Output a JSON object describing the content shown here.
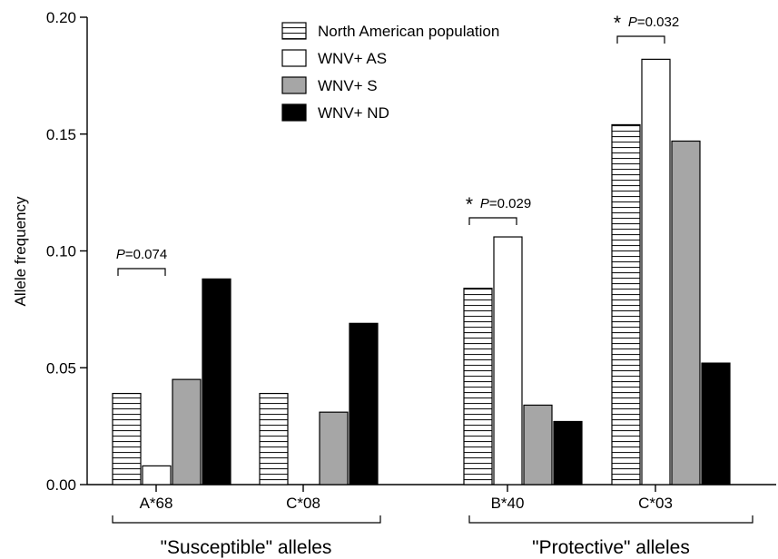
{
  "chart_data": {
    "type": "bar",
    "title": "",
    "xlabel": "",
    "ylabel": "Allele frequency",
    "ylim": [
      0,
      0.2
    ],
    "yticks": [
      {
        "value": 0,
        "label": "0.00"
      },
      {
        "value": 0.05,
        "label": "0.05"
      },
      {
        "value": 0.1,
        "label": "0.10"
      },
      {
        "value": 0.15,
        "label": "0.15"
      },
      {
        "value": 0.2,
        "label": "0.20"
      }
    ],
    "categories": [
      "A*68",
      "C*08",
      "B*40",
      "C*03"
    ],
    "series": [
      {
        "name": "North American population",
        "values": [
          0.039,
          0.039,
          0.084,
          0.154
        ],
        "fill": "striped"
      },
      {
        "name": "WNV+ AS",
        "values": [
          0.008,
          0,
          0.106,
          0.182
        ],
        "fill": "#ffffff"
      },
      {
        "name": "WNV+ S",
        "values": [
          0.045,
          0.031,
          0.034,
          0.147
        ],
        "fill": "#a6a6a6"
      },
      {
        "name": "WNV+ ND",
        "values": [
          0.088,
          0.069,
          0.027,
          0.052
        ],
        "fill": "#000000"
      }
    ],
    "legend": {
      "placement": "top-center"
    },
    "annotations": [
      {
        "category": "A*68",
        "star": "",
        "p_italic": "P",
        "p_value": "=0.074"
      },
      {
        "category": "B*40",
        "star": "*",
        "p_italic": "P",
        "p_value": "=0.029"
      },
      {
        "category": "C*03",
        "star": "*",
        "p_italic": "P",
        "p_value": "=0.032"
      }
    ],
    "groups": [
      {
        "label": "\"Susceptible\" alleles",
        "categories": [
          "A*68",
          "C*08"
        ]
      },
      {
        "label": "\"Protective\" alleles",
        "categories": [
          "B*40",
          "C*03"
        ]
      }
    ],
    "grid": false
  }
}
